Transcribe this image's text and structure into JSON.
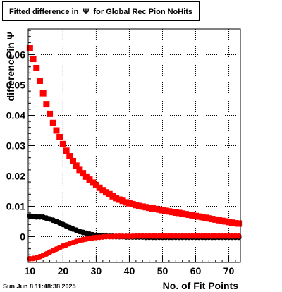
{
  "header": {
    "title": "Fitted difference in  Ψ  for Global Rec Pion NoHits"
  },
  "footer": {
    "datestamp": "Sun Jun  8 11:48:38 2025"
  },
  "chart_data": {
    "type": "scatter",
    "title": "Fitted difference in  Ψ  for Global Rec Pion NoHits",
    "xlabel": "No. of Fit Points",
    "ylabel": "difference in  Ψ",
    "xlim": [
      9.5,
      73.5
    ],
    "ylim": [
      -0.0085,
      0.0685
    ],
    "grid": true,
    "x_ticks": [
      10,
      20,
      30,
      40,
      50,
      60,
      70
    ],
    "x_tick_labels": [
      "10",
      "20",
      "30",
      "40",
      "50",
      "60",
      "70"
    ],
    "y_ticks": [
      0,
      0.01,
      0.02,
      0.03,
      0.04,
      0.05,
      0.06
    ],
    "y_tick_labels": [
      "0",
      "0.01",
      "0.02",
      "0.03",
      "0.04",
      "0.05",
      "0.06"
    ],
    "x": [
      10,
      11,
      12,
      13,
      14,
      15,
      16,
      17,
      18,
      19,
      20,
      21,
      22,
      23,
      24,
      25,
      26,
      27,
      28,
      29,
      30,
      31,
      32,
      33,
      34,
      35,
      36,
      37,
      38,
      39,
      40,
      41,
      42,
      43,
      44,
      45,
      46,
      47,
      48,
      49,
      50,
      51,
      52,
      53,
      54,
      55,
      56,
      57,
      58,
      59,
      60,
      61,
      62,
      63,
      64,
      65,
      66,
      67,
      68,
      69,
      70,
      71,
      72,
      73
    ],
    "series": [
      {
        "marker": "square",
        "color": "#ff0000",
        "values": [
          0.0621,
          0.0586,
          0.0556,
          0.0514,
          0.0473,
          0.0437,
          0.0405,
          0.0375,
          0.035,
          0.0328,
          0.0305,
          0.0283,
          0.0265,
          0.0249,
          0.0234,
          0.022,
          0.0209,
          0.0198,
          0.0188,
          0.0178,
          0.017,
          0.0161,
          0.0153,
          0.0146,
          0.014,
          0.0133,
          0.0127,
          0.0122,
          0.0118,
          0.0113,
          0.011,
          0.0107,
          0.0104,
          0.0101,
          0.0099,
          0.0097,
          0.0095,
          0.0093,
          0.0091,
          0.0089,
          0.0087,
          0.0085,
          0.0083,
          0.0081,
          0.0079,
          0.0078,
          0.0076,
          0.0074,
          0.0072,
          0.007,
          0.0068,
          0.0066,
          0.0064,
          0.0062,
          0.006,
          0.0058,
          0.0056,
          0.0054,
          0.0052,
          0.005,
          0.0048,
          0.0046,
          0.0044,
          0.0043
        ]
      },
      {
        "marker": "circle",
        "color": "#000000",
        "values": [
          0.0068,
          0.0066,
          0.0065,
          0.0065,
          0.0064,
          0.0061,
          0.0058,
          0.0054,
          0.005,
          0.0045,
          0.004,
          0.0035,
          0.003,
          0.0025,
          0.0021,
          0.0017,
          0.0014,
          0.0011,
          0.0008,
          0.0006,
          0.0004,
          0.0003,
          0.0002,
          0.0002,
          0.0001,
          0.0001,
          0.0,
          0.0,
          0.0,
          -0.0001,
          -0.0001,
          -0.0001,
          -0.0001,
          -0.0001,
          -0.0001,
          -0.0002,
          -0.0002,
          -0.0002,
          -0.0002,
          -0.0002,
          -0.0002,
          -0.0002,
          -0.0002,
          -0.0002,
          -0.0002,
          -0.0002,
          -0.0002,
          -0.0002,
          -0.0002,
          -0.0002,
          -0.0002,
          -0.0002,
          -0.0002,
          -0.0002,
          -0.0002,
          -0.0002,
          -0.0002,
          -0.0002,
          -0.0002,
          -0.0002,
          -0.0002,
          -0.0002,
          -0.0002,
          -0.0002
        ]
      },
      {
        "marker": "circle",
        "color": "#ff0000",
        "values": [
          -0.0073,
          -0.0072,
          -0.007,
          -0.0066,
          -0.0062,
          -0.0057,
          -0.0051,
          -0.0046,
          -0.0041,
          -0.0036,
          -0.0031,
          -0.0027,
          -0.0023,
          -0.002,
          -0.0016,
          -0.0013,
          -0.001,
          -0.0008,
          -0.0006,
          -0.0004,
          -0.0003,
          -0.0002,
          -0.0001,
          0.0,
          0.0,
          0.0,
          0.0001,
          0.0001,
          0.0001,
          0.0001,
          0.0001,
          0.0001,
          0.0002,
          0.0002,
          0.0002,
          0.0002,
          0.0002,
          0.0002,
          0.0002,
          0.0002,
          0.0002,
          0.0002,
          0.0002,
          0.0002,
          0.0002,
          0.0002,
          0.0002,
          0.0002,
          0.0002,
          0.0002,
          0.0002,
          0.0002,
          0.0002,
          0.0002,
          0.0002,
          0.0002,
          0.0002,
          0.0002,
          0.0002,
          0.0002,
          0.0002,
          0.0002,
          0.0002,
          0.0002
        ]
      }
    ]
  }
}
